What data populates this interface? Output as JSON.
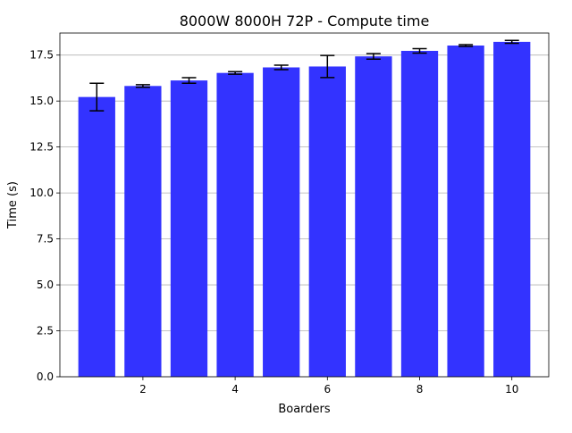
{
  "chart_data": {
    "type": "bar",
    "title": "8000W 8000H 72P - Compute time",
    "xlabel": "Boarders",
    "ylabel": "Time (s)",
    "x": [
      1,
      2,
      3,
      4,
      5,
      6,
      7,
      8,
      9,
      10
    ],
    "values": [
      15.22,
      15.82,
      16.12,
      16.53,
      16.83,
      16.88,
      17.43,
      17.73,
      18.02,
      18.22
    ],
    "errors": [
      0.75,
      0.07,
      0.15,
      0.07,
      0.12,
      0.6,
      0.15,
      0.12,
      0.05,
      0.08
    ],
    "xlim": [
      0.2,
      10.8
    ],
    "ylim": [
      0,
      18.7
    ],
    "xticks": [
      2,
      4,
      6,
      8,
      10
    ],
    "xtick_labels": [
      "2",
      "4",
      "6",
      "8",
      "10"
    ],
    "yticks": [
      0,
      2.5,
      5,
      7.5,
      10,
      12.5,
      15,
      17.5
    ],
    "ytick_labels": [
      "0.0",
      "2.5",
      "5.0",
      "7.5",
      "10.0",
      "12.5",
      "15.0",
      "17.5"
    ],
    "grid": "y-major",
    "bar_color": "#3333ff",
    "error_color": "#000000",
    "legend": "none"
  }
}
